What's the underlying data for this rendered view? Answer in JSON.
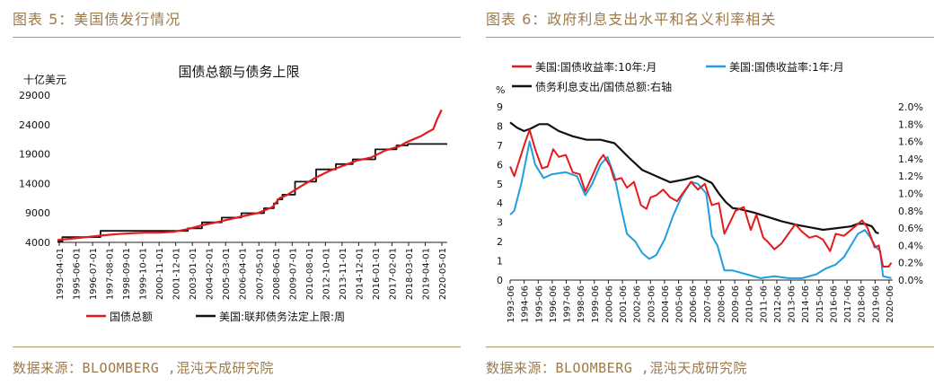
{
  "figures": [
    {
      "caption": "图表 5：美国债发行情况",
      "source": "数据来源：BLOOMBERG ,混沌天成研究院"
    },
    {
      "caption": "图表 6：政府利息支出水平和名义利率相关",
      "source": "数据来源：BLOOMBERG ,混沌天成研究院"
    }
  ],
  "chart_data": [
    {
      "type": "line",
      "title": "国债总额与债务上限",
      "unit_label": "十亿美元",
      "ylim": [
        4000,
        29000
      ],
      "yticks": [
        "4000",
        "9000",
        "14000",
        "19000",
        "24000",
        "29000"
      ],
      "x_labels": [
        "1993-04-01",
        "1995-06-01",
        "1996-07-01",
        "1997-08-01",
        "1998-09-01",
        "1999-10-01",
        "2000-11-01",
        "2001-12-01",
        "2003-01-01",
        "2004-02-01",
        "2005-03-01",
        "2006-04-01",
        "2007-05-01",
        "2008-06-01",
        "2009-07-01",
        "2010-08-01",
        "2012-10-01",
        "2013-11-01",
        "2014-12-01",
        "2016-01-01",
        "2017-02-01",
        "2018-03-01",
        "2019-04-01",
        "2020-05-01"
      ],
      "series": [
        {
          "name": "国债总额",
          "color": "#e41a1c",
          "x": [
            1993.25,
            1994.5,
            1995.5,
            1996.5,
            1997.5,
            1998.5,
            1999.5,
            2000.5,
            2001.5,
            2002.5,
            2003.5,
            2004.5,
            2005.5,
            2006.5,
            2007.5,
            2008.5,
            2009.0,
            2009.5,
            2010.5,
            2011.5,
            2012.5,
            2013.5,
            2014.5,
            2015.5,
            2016.5,
            2017.5,
            2018.0,
            2018.5,
            2019.0,
            2019.5,
            2019.9,
            2020.2,
            2020.5
          ],
          "values": [
            4400,
            4700,
            4950,
            5200,
            5400,
            5550,
            5650,
            5650,
            5800,
            6250,
            6900,
            7400,
            7950,
            8500,
            9000,
            10000,
            11500,
            12000,
            13500,
            14900,
            16100,
            17000,
            17900,
            18400,
            19600,
            20300,
            21000,
            21500,
            22000,
            22700,
            23200,
            25000,
            26500
          ]
        },
        {
          "name": "美国:联邦债务法定上限:周",
          "color": "#111111",
          "x": [
            1993.25,
            1993.6,
            1993.6,
            1996.3,
            1996.3,
            2002.5,
            2002.5,
            2003.5,
            2003.5,
            2004.9,
            2004.9,
            2006.3,
            2006.3,
            2007.9,
            2007.9,
            2008.6,
            2008.6,
            2008.85,
            2008.85,
            2009.2,
            2009.2,
            2010.1,
            2010.1,
            2011.6,
            2011.6,
            2013.0,
            2013.0,
            2014.2,
            2014.2,
            2015.8,
            2015.8,
            2017.3,
            2017.3,
            2018.1,
            2018.1,
            2019.6,
            2019.6,
            2020.9
          ],
          "values": [
            4150,
            4150,
            4900,
            4900,
            5950,
            5950,
            6400,
            6400,
            7400,
            7400,
            8200,
            8200,
            8950,
            8950,
            9800,
            9800,
            10600,
            10600,
            11300,
            11300,
            12100,
            12100,
            14300,
            14300,
            16400,
            16400,
            17300,
            17300,
            18100,
            18100,
            19800,
            19800,
            20456,
            20456,
            20700,
            20700,
            20700,
            20700
          ]
        }
      ]
    },
    {
      "type": "line",
      "left_unit": "%",
      "ylim_left": [
        0,
        9
      ],
      "ylim_right": [
        0.0,
        2.0
      ],
      "yticks_left": [
        "0",
        "1",
        "2",
        "3",
        "4",
        "5",
        "6",
        "7",
        "8",
        "9"
      ],
      "yticks_right": [
        "0.0%",
        "0.2%",
        "0.4%",
        "0.6%",
        "0.8%",
        "1.0%",
        "1.2%",
        "1.4%",
        "1.6%",
        "1.8%",
        "2.0%"
      ],
      "x_labels": [
        "1993-06",
        "1994-06",
        "1995-06",
        "1996-06",
        "1997-06",
        "1998-06",
        "1999-06",
        "2000-06",
        "2001-06",
        "2002-06",
        "2003-06",
        "2004-06",
        "2005-06",
        "2006-06",
        "2007-06",
        "2008-06",
        "2009-06",
        "2010-06",
        "2011-06",
        "2012-06",
        "2013-06",
        "2014-06",
        "2015-06",
        "2016-06",
        "2017-06",
        "2018-06",
        "2019-06",
        "2020-06"
      ],
      "series": [
        {
          "name": "美国:国债收益率:10年:月",
          "color": "#e41a1c",
          "axis": "left",
          "x": [
            1993.5,
            1993.8,
            1994.2,
            1994.6,
            1994.9,
            1995.3,
            1995.8,
            1996.2,
            1996.6,
            1997.0,
            1997.5,
            1998.0,
            1998.5,
            1998.9,
            1999.4,
            1999.9,
            2000.2,
            2000.7,
            2001.0,
            2001.5,
            2001.9,
            2002.4,
            2002.9,
            2003.3,
            2003.6,
            2004.0,
            2004.5,
            2005.0,
            2005.5,
            2006.0,
            2006.5,
            2007.0,
            2007.5,
            2008.0,
            2008.5,
            2008.9,
            2009.3,
            2009.7,
            2010.3,
            2010.8,
            2011.2,
            2011.7,
            2012.0,
            2012.5,
            2013.0,
            2013.5,
            2014.0,
            2014.5,
            2015.0,
            2015.5,
            2016.0,
            2016.5,
            2016.9,
            2017.5,
            2018.0,
            2018.8,
            2019.2,
            2019.7,
            2020.0,
            2020.3,
            2020.7,
            2020.9
          ],
          "values": [
            5.9,
            5.4,
            6.3,
            7.2,
            7.8,
            6.8,
            5.8,
            5.9,
            6.8,
            6.4,
            6.5,
            5.6,
            5.5,
            4.6,
            5.4,
            6.2,
            6.5,
            5.9,
            5.2,
            5.3,
            4.8,
            5.1,
            3.9,
            3.7,
            4.3,
            4.4,
            4.7,
            4.3,
            4.1,
            4.6,
            5.1,
            4.7,
            5.0,
            3.9,
            4.0,
            2.4,
            3.0,
            3.6,
            3.8,
            2.6,
            3.4,
            2.2,
            2.0,
            1.6,
            1.9,
            2.4,
            2.9,
            2.5,
            2.2,
            2.3,
            2.1,
            1.5,
            2.4,
            2.3,
            2.6,
            3.1,
            2.7,
            1.7,
            1.8,
            0.7,
            0.7,
            0.9
          ]
        },
        {
          "name": "美国:国债收益率:1年:月",
          "color": "#1f9fe0",
          "axis": "left",
          "x": [
            1993.5,
            1993.8,
            1994.3,
            1994.9,
            1995.3,
            1995.9,
            1996.5,
            1997.5,
            1998.3,
            1998.9,
            1999.4,
            2000.0,
            2000.5,
            2001.0,
            2001.4,
            2001.9,
            2002.5,
            2003.0,
            2003.5,
            2004.0,
            2004.6,
            2005.2,
            2005.8,
            2006.5,
            2007.0,
            2007.6,
            2008.0,
            2008.4,
            2008.9,
            2009.5,
            2010.5,
            2011.5,
            2012.5,
            2013.5,
            2014.5,
            2015.5,
            2016.2,
            2016.9,
            2017.5,
            2018.0,
            2018.5,
            2019.0,
            2019.4,
            2019.8,
            2020.1,
            2020.3,
            2020.9
          ],
          "values": [
            3.4,
            3.6,
            5.0,
            7.2,
            6.0,
            5.3,
            5.5,
            5.6,
            5.4,
            4.4,
            5.0,
            6.0,
            6.4,
            5.4,
            4.0,
            2.4,
            2.0,
            1.4,
            1.1,
            1.3,
            2.1,
            3.3,
            4.3,
            5.1,
            5.0,
            4.5,
            2.3,
            1.8,
            0.5,
            0.5,
            0.3,
            0.1,
            0.2,
            0.1,
            0.1,
            0.3,
            0.6,
            0.8,
            1.2,
            1.8,
            2.4,
            2.6,
            2.2,
            1.7,
            1.5,
            0.2,
            0.1
          ]
        },
        {
          "name": "债务利息支出/国债总额:右轴",
          "color": "#111111",
          "axis": "right",
          "x": [
            1993.5,
            1994.0,
            1994.5,
            1995.0,
            1995.6,
            1996.2,
            1997.0,
            1998.0,
            1999.0,
            2000.0,
            2001.0,
            2002.0,
            2003.0,
            2004.0,
            2005.0,
            2006.0,
            2007.0,
            2007.5,
            2008.0,
            2008.5,
            2009.0,
            2009.5,
            2010.0,
            2011.0,
            2012.0,
            2013.0,
            2014.0,
            2015.0,
            2016.0,
            2017.0,
            2018.0,
            2018.5,
            2019.0,
            2019.5,
            2019.8,
            2020.0
          ],
          "values": [
            1.82,
            1.76,
            1.72,
            1.75,
            1.8,
            1.8,
            1.72,
            1.66,
            1.62,
            1.62,
            1.58,
            1.42,
            1.27,
            1.2,
            1.13,
            1.16,
            1.2,
            1.16,
            1.12,
            1.0,
            0.9,
            0.83,
            0.82,
            0.78,
            0.73,
            0.68,
            0.64,
            0.61,
            0.58,
            0.6,
            0.62,
            0.65,
            0.65,
            0.62,
            0.55,
            0.54
          ]
        }
      ]
    }
  ]
}
